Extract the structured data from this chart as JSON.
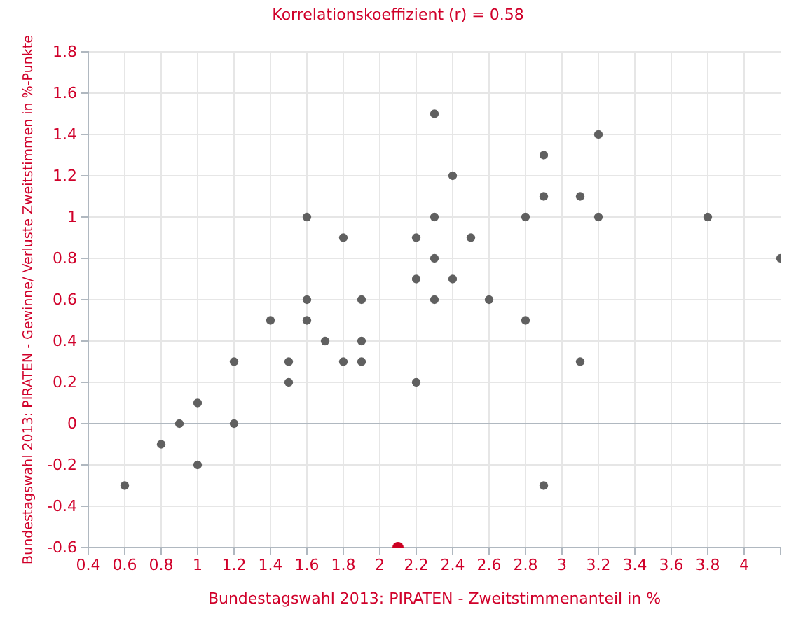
{
  "chart_data": {
    "type": "scatter",
    "title": "Korrelationskoeffizient (r) = 0.58",
    "xlabel": "Bundestagswahl 2013: PIRATEN - Zweitstimmenanteil in %",
    "ylabel": "Bundestagswahl 2013: PIRATEN - Gewinne/ Verluste Zweitstimmen in %-Punkte",
    "series": [
      {
        "color": "#606060",
        "x": [
          0.6,
          0.8,
          0.9,
          1,
          1,
          1.2,
          1.2,
          1.4,
          1.5,
          1.5,
          1.6,
          1.6,
          1.6,
          1.7,
          1.8,
          1.8,
          1.9,
          1.9,
          1.9,
          2.2,
          2.2,
          2.2,
          2.3,
          2.3,
          2.3,
          2.3,
          2.4,
          2.4,
          2.5,
          2.6,
          2.8,
          2.8,
          2.9,
          2.9,
          2.9,
          3.1,
          3.1,
          3.2,
          3.2,
          3.8,
          4.2
        ],
        "values": [
          -0.3,
          -0.1,
          0,
          0.1,
          -0.2,
          0.3,
          0,
          0.5,
          0.3,
          0.2,
          1,
          0.6,
          0.5,
          0.4,
          0.9,
          0.3,
          0.6,
          0.4,
          0.3,
          0.9,
          0.7,
          0.2,
          1.5,
          1,
          0.8,
          0.6,
          1.2,
          0.7,
          0.9,
          0.6,
          1,
          0.5,
          1.3,
          1.1,
          -0.3,
          1.1,
          0.3,
          1.4,
          1,
          1,
          0.8
        ]
      },
      {
        "color": "#cc0022",
        "x": [
          2.1
        ],
        "values": [
          -0.6
        ]
      }
    ],
    "xlim": [
      0.4,
      4.2
    ],
    "xticks": [
      0.4,
      0.6,
      0.8,
      1,
      1.2,
      1.4,
      1.6,
      1.8,
      2,
      2.2,
      2.4,
      2.6,
      2.8,
      3,
      3.2,
      3.4,
      3.6,
      3.8,
      4
    ],
    "ylim": [
      -0.6,
      1.8
    ],
    "yticks": [
      -0.6,
      -0.4,
      -0.2,
      0,
      0.2,
      0.4,
      0.6,
      0.8,
      1,
      1.2,
      1.4,
      1.6,
      1.8
    ],
    "ref_lines": [
      {
        "axis": "y",
        "value": 0,
        "color": "#b0b8c0"
      }
    ],
    "grid": true,
    "marker": "circle"
  }
}
